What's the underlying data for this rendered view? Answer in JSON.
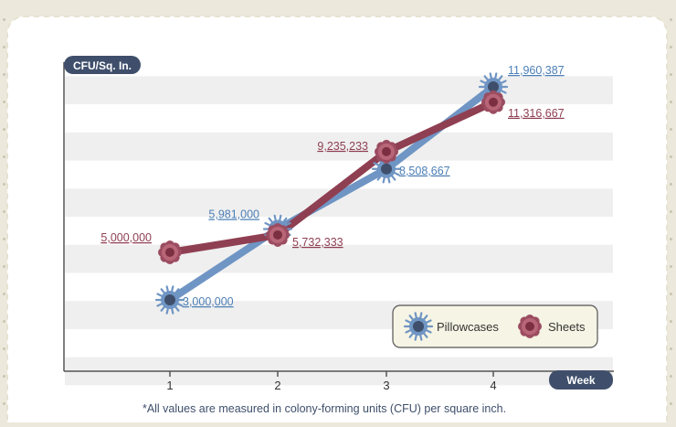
{
  "chart_data": {
    "type": "line",
    "x": [
      1,
      2,
      3,
      4
    ],
    "xlabel": "Week",
    "ylabel": "CFU/Sq. In.",
    "ylim": [
      0,
      13000000
    ],
    "grid": "horizontal bands",
    "legend_position": "bottom-right",
    "series": [
      {
        "name": "Pillowcases",
        "values": [
          3000000,
          5981000,
          8508667,
          11960387
        ],
        "labels": [
          "3,000,000",
          "5,981,000",
          "8,508,667",
          "11,960,387"
        ],
        "color": "#6f95c4",
        "marker_color": "#3f4f6b",
        "label_color": "#4d7fb5"
      },
      {
        "name": "Sheets",
        "values": [
          5000000,
          5732333,
          9235233,
          11316667
        ],
        "labels": [
          "5,000,000",
          "5,732,333",
          "9,235,233",
          "11,316,667"
        ],
        "color": "#8f3f52",
        "marker_color": "#7b2f41",
        "label_color": "#8f3f52"
      }
    ]
  },
  "footnote": "*All values are measured in colony-forming units (CFU) per square inch.",
  "colors": {
    "background": "#ece9dc",
    "card": "#ffffff",
    "band": "#eeeeee",
    "axis_tag": "#3f4f6b",
    "legend_bg": "#f6f4e4"
  }
}
